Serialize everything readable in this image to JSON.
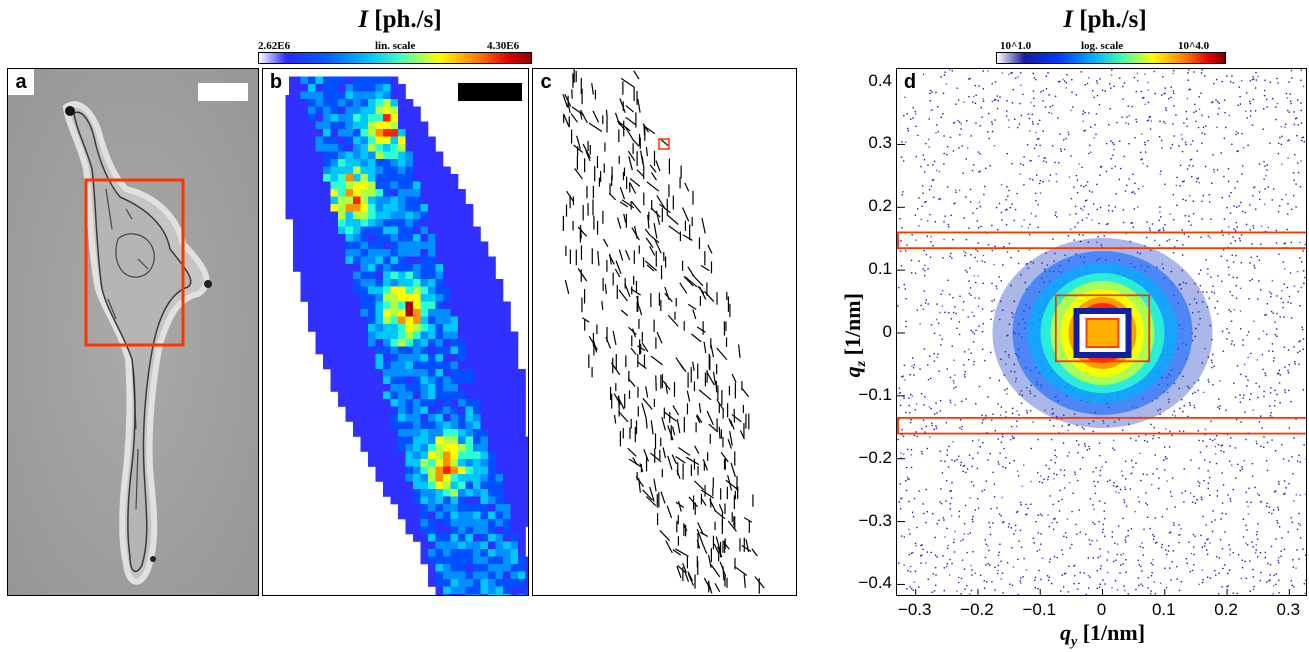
{
  "figure": {
    "colorbar_left": {
      "title_symbol": "I",
      "title_unit": "[ph./s]",
      "min_label": "2.62E6",
      "max_label": "4.30E6",
      "scale_label": "lin. scale"
    },
    "colorbar_right": {
      "title_symbol": "I",
      "title_unit": "[ph./s]",
      "min_label": "10^1.0",
      "max_label": "10^4.0",
      "scale_label": "log. scale"
    },
    "panels": {
      "a": {
        "letter": "a"
      },
      "b": {
        "letter": "b"
      },
      "c": {
        "letter": "c"
      },
      "d": {
        "letter": "d"
      }
    },
    "colors": {
      "highlight": "#ff3300",
      "scale_bar_light": "#ffffff",
      "scale_bar_dark": "#000000"
    }
  },
  "chart_data": {
    "type": "heatmap",
    "panel": "d",
    "xlabel_symbol": "q",
    "xlabel_sub": "y",
    "xlabel_unit": "[1/nm]",
    "ylabel_symbol": "q",
    "ylabel_sub": "z",
    "ylabel_unit": "[1/nm]",
    "xlim": [
      -0.33,
      0.33
    ],
    "ylim": [
      -0.42,
      0.42
    ],
    "x_ticks": [
      "−0.3",
      "−0.2",
      "−0.1",
      "0",
      "0.1",
      "0.2",
      "0.3"
    ],
    "x_tick_values": [
      -0.3,
      -0.2,
      -0.1,
      0,
      0.1,
      0.2,
      0.3
    ],
    "y_ticks": [
      "0.4",
      "0.3",
      "0.2",
      "0.1",
      "0",
      "−0.1",
      "−0.2",
      "−0.3",
      "−0.4"
    ],
    "y_tick_values": [
      0.4,
      0.3,
      0.2,
      0.1,
      0,
      -0.1,
      -0.2,
      -0.3,
      -0.4
    ],
    "color_scale": "log",
    "color_range": [
      1.0,
      4.0
    ],
    "horizontal_bands_qz": [
      [
        0.135,
        0.16
      ],
      [
        -0.16,
        -0.135
      ]
    ],
    "center_box_q": {
      "qy": [
        -0.075,
        0.075
      ],
      "qz": [
        -0.045,
        0.06
      ]
    }
  }
}
